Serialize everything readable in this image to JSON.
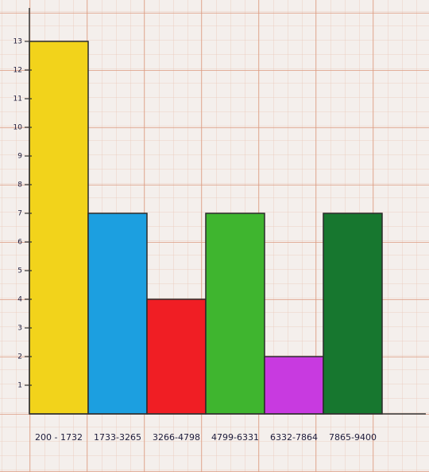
{
  "chart_data": {
    "type": "bar",
    "categories": [
      "200 - 1732",
      "1733-3265",
      "3266-4798",
      "4799-6331",
      "6332-7864",
      "7865-9400"
    ],
    "values": [
      13,
      7,
      4,
      7,
      2,
      7
    ],
    "colors": [
      "#f2d31b",
      "#1c9fe0",
      "#f01e24",
      "#3fb52f",
      "#c83ae0",
      "#17772f"
    ],
    "ylim": [
      0,
      14
    ],
    "yticks": [
      1,
      2,
      3,
      4,
      5,
      6,
      7,
      8,
      9,
      10,
      11,
      12,
      13
    ]
  }
}
